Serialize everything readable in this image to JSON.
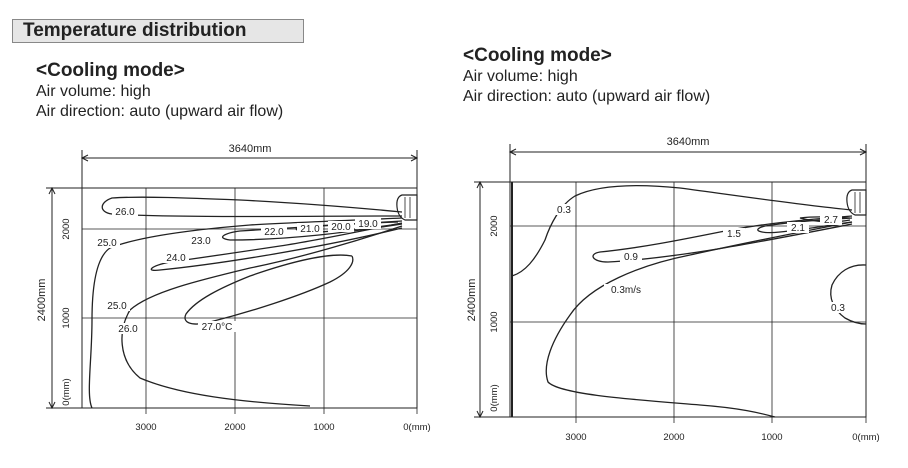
{
  "section_title": "Temperature distribution",
  "panels": [
    {
      "mode": "<Cooling mode>",
      "air_volume": "Air volume: high",
      "air_direction": "Air direction: auto (upward air flow)",
      "width_label": "3640mm",
      "height_label": "2400mm",
      "x_ticks": [
        "3000",
        "2000",
        "1000",
        "0(mm)"
      ],
      "y_ticks": [
        "2000",
        "1000",
        "0(mm)"
      ],
      "contour_labels": [
        "26.0",
        "25.0",
        "23.0",
        "24.0",
        "22.0",
        "21.0",
        "20.0",
        "19.0",
        "25.0",
        "26.0",
        "27.0°C"
      ]
    },
    {
      "mode": "<Cooling mode>",
      "air_volume": "Air volume: high",
      "air_direction": "Air direction: auto (upward air flow)",
      "width_label": "3640mm",
      "height_label": "2400mm",
      "x_ticks": [
        "3000",
        "2000",
        "1000",
        "0(mm)"
      ],
      "y_ticks": [
        "2000",
        "1000",
        "0(mm)"
      ],
      "contour_labels": [
        "0.3",
        "2.7",
        "2.1",
        "1.5",
        "0.9",
        "0.3m/s",
        "0.3"
      ]
    }
  ]
}
